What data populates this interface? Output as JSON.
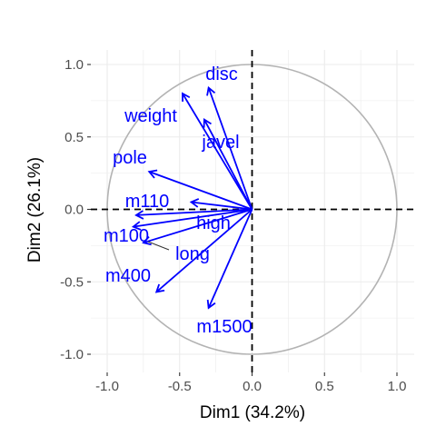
{
  "chart_data": {
    "type": "scatter",
    "title": "",
    "xlabel": "Dim1 (34.2%)",
    "ylabel": "Dim2 (26.1%)",
    "xlim": [
      -1.1,
      1.1
    ],
    "ylim": [
      -1.1,
      1.1
    ],
    "xticks": [
      "-1.0",
      "-0.5",
      "0.0",
      "0.5",
      "1.0"
    ],
    "yticks": [
      "-1.0",
      "-0.5",
      "0.0",
      "0.5",
      "1.0"
    ],
    "grid": true,
    "reference_lines": {
      "x": 0,
      "y": 0,
      "style": "dashed"
    },
    "unit_circle": true,
    "colors": {
      "arrows": "#0000ff",
      "circle": "#b3b3b3",
      "grid": "#ebebeb"
    },
    "variables": [
      {
        "name": "disc",
        "x": -0.3,
        "y": 0.84
      },
      {
        "name": "weight",
        "x": -0.48,
        "y": 0.8
      },
      {
        "name": "javel",
        "x": -0.33,
        "y": 0.62
      },
      {
        "name": "pole",
        "x": -0.71,
        "y": 0.26
      },
      {
        "name": "m110",
        "x": -0.42,
        "y": 0.05
      },
      {
        "name": "high",
        "x": -0.8,
        "y": -0.04
      },
      {
        "name": "m100",
        "x": -0.82,
        "y": -0.12
      },
      {
        "name": "long",
        "x": -0.75,
        "y": -0.23
      },
      {
        "name": "m400",
        "x": -0.66,
        "y": -0.57
      },
      {
        "name": "m1500",
        "x": -0.3,
        "y": -0.68
      }
    ]
  }
}
